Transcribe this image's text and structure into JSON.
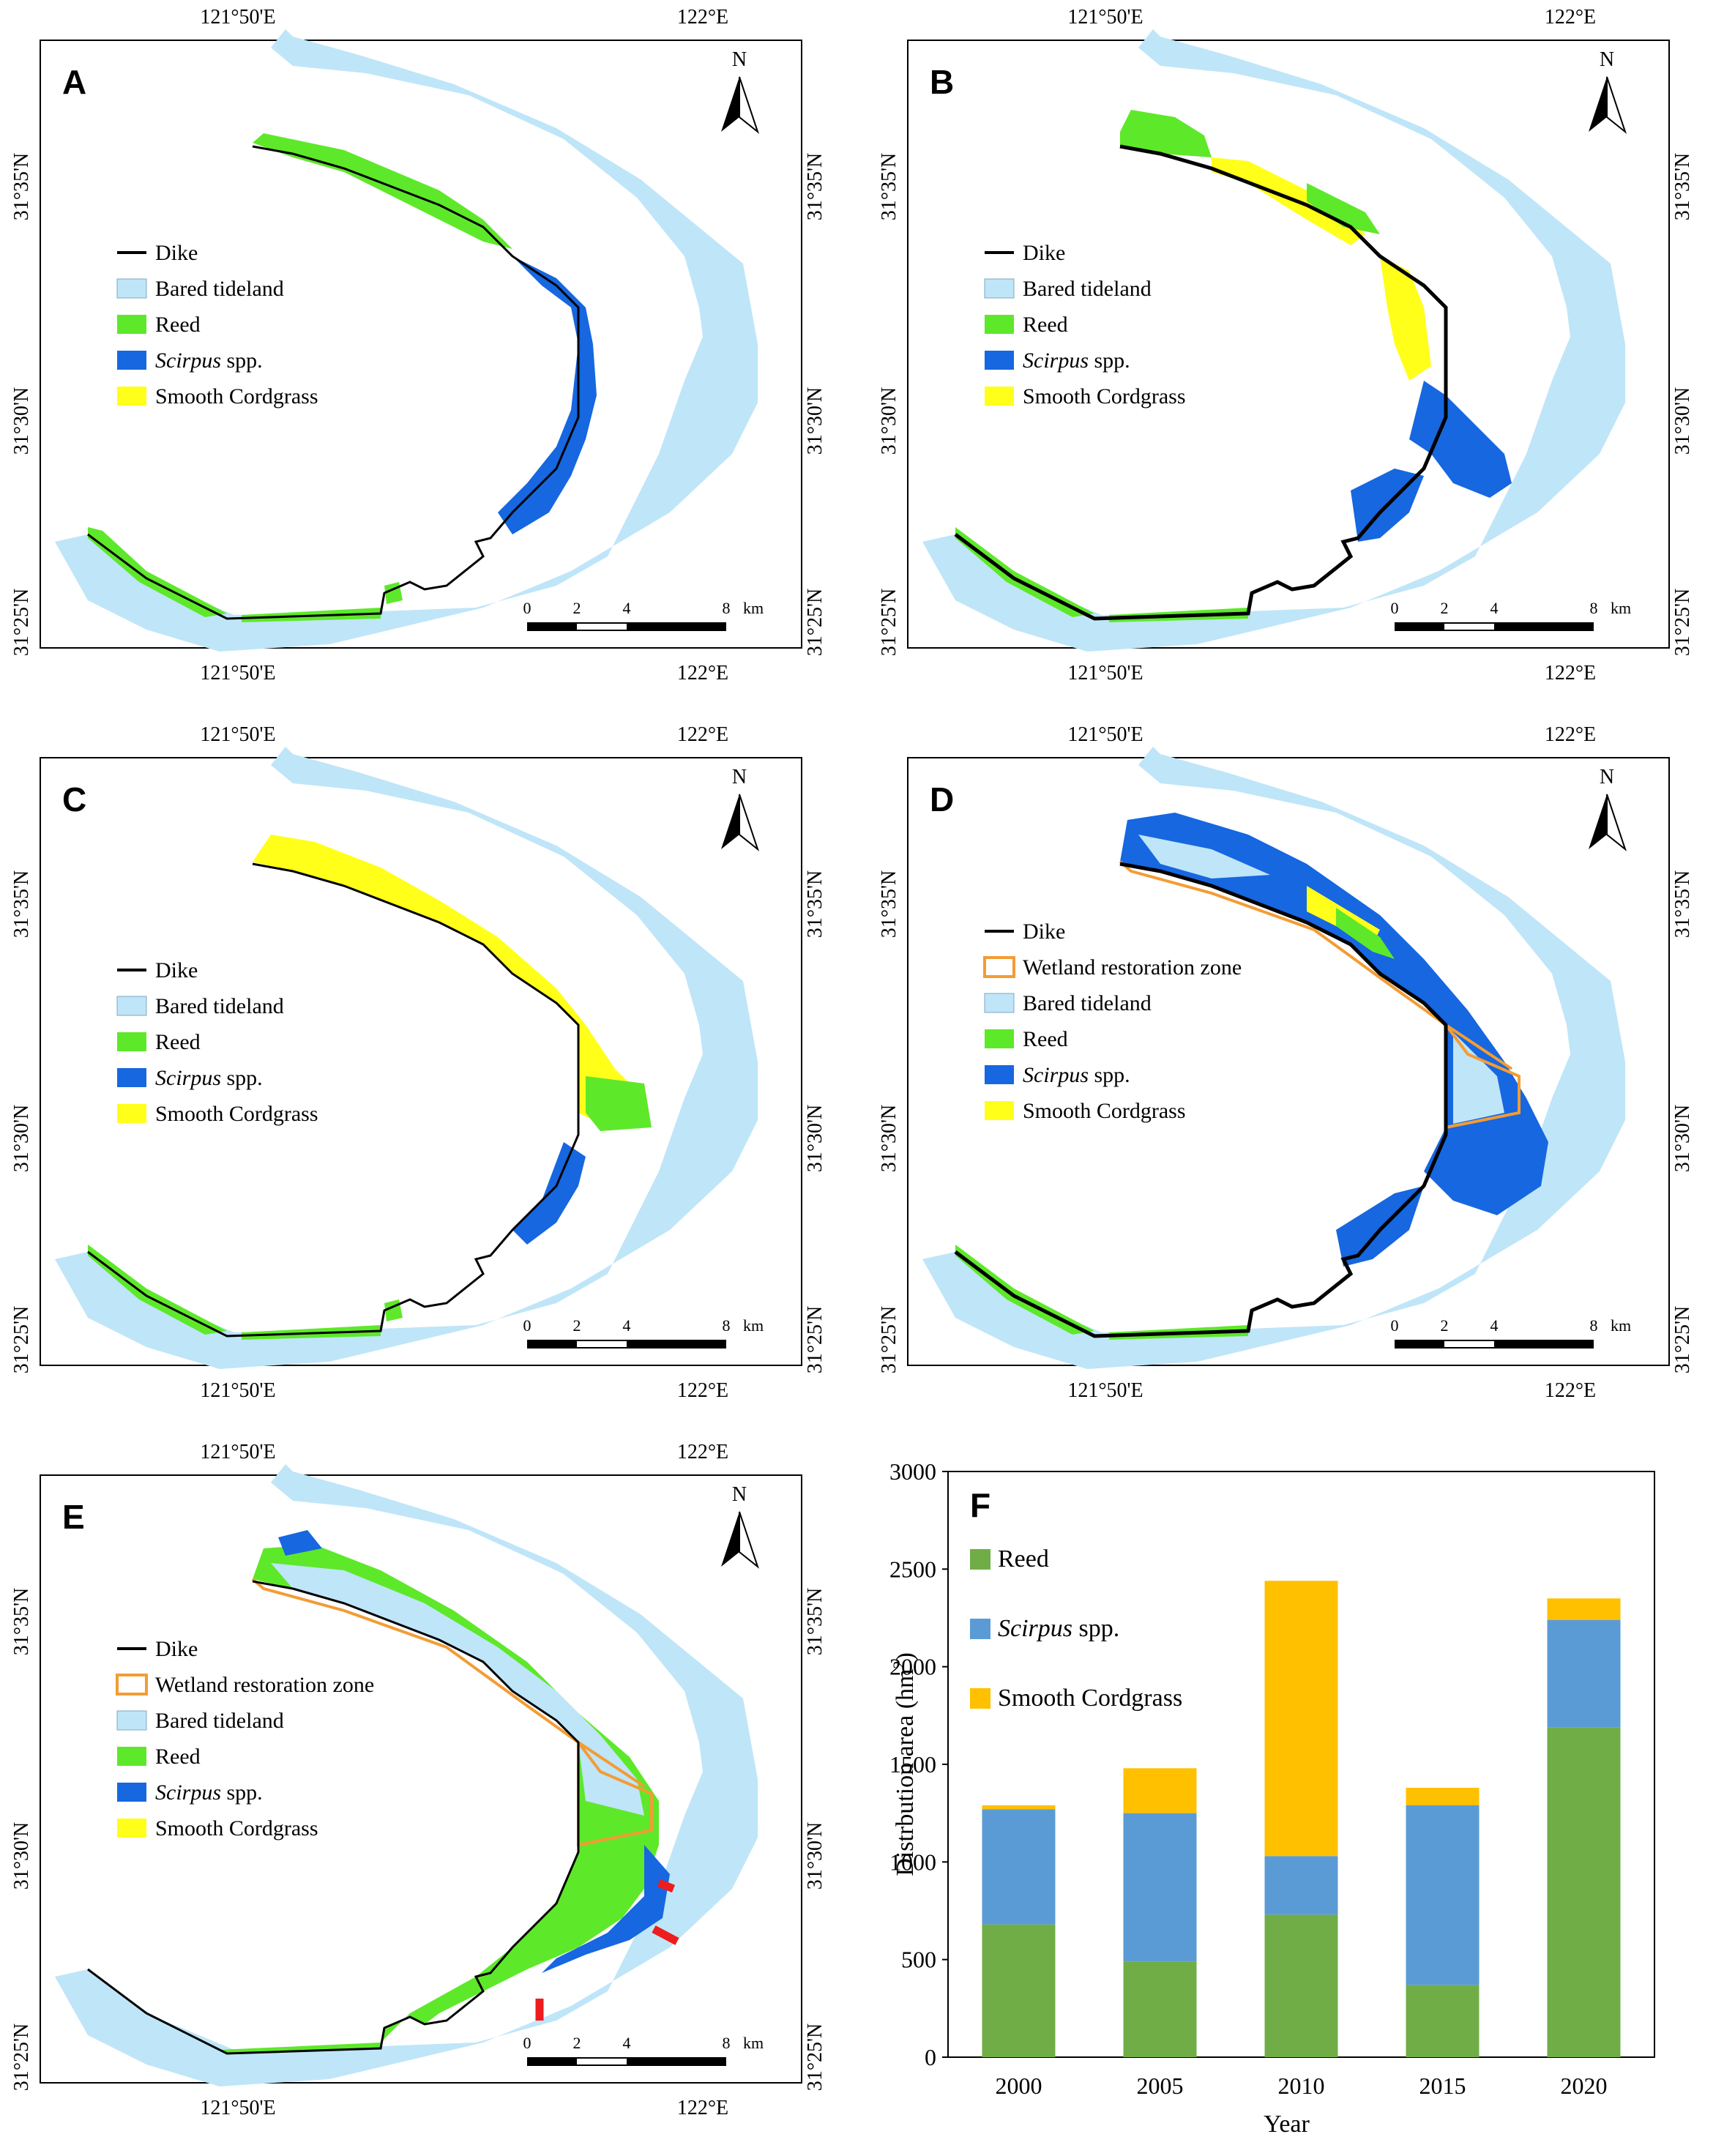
{
  "maps": [
    {
      "id": "A",
      "label": "A",
      "legend": [
        {
          "key": "dike",
          "text": "Dike",
          "italic": ""
        },
        {
          "key": "tideland",
          "text": "Bared tideland",
          "italic": ""
        },
        {
          "key": "reed",
          "text": "Reed",
          "italic": ""
        },
        {
          "key": "scirpus",
          "text": " spp.",
          "italic": "Scirpus"
        },
        {
          "key": "cordgrass",
          "text": "Smooth Cordgrass",
          "italic": ""
        }
      ]
    },
    {
      "id": "B",
      "label": "B",
      "legend": [
        {
          "key": "dike",
          "text": "Dike",
          "italic": ""
        },
        {
          "key": "tideland",
          "text": "Bared tideland",
          "italic": ""
        },
        {
          "key": "reed",
          "text": "Reed",
          "italic": ""
        },
        {
          "key": "scirpus",
          "text": " spp.",
          "italic": "Scirpus"
        },
        {
          "key": "cordgrass",
          "text": "Smooth Cordgrass",
          "italic": ""
        }
      ]
    },
    {
      "id": "C",
      "label": "C",
      "legend": [
        {
          "key": "dike",
          "text": "Dike",
          "italic": ""
        },
        {
          "key": "tideland",
          "text": "Bared tideland",
          "italic": ""
        },
        {
          "key": "reed",
          "text": "Reed",
          "italic": ""
        },
        {
          "key": "scirpus",
          "text": " spp.",
          "italic": "Scirpus"
        },
        {
          "key": "cordgrass",
          "text": "Smooth Cordgrass",
          "italic": ""
        }
      ]
    },
    {
      "id": "D",
      "label": "D",
      "legend": [
        {
          "key": "dike",
          "text": "Dike",
          "italic": ""
        },
        {
          "key": "zone",
          "text": "Wetland restoration zone",
          "italic": ""
        },
        {
          "key": "tideland",
          "text": "Bared tideland",
          "italic": ""
        },
        {
          "key": "reed",
          "text": "Reed",
          "italic": ""
        },
        {
          "key": "scirpus",
          "text": " spp.",
          "italic": "Scirpus"
        },
        {
          "key": "cordgrass",
          "text": "Smooth Cordgrass",
          "italic": ""
        }
      ]
    },
    {
      "id": "E",
      "label": "E",
      "legend": [
        {
          "key": "dike",
          "text": "Dike",
          "italic": ""
        },
        {
          "key": "zone",
          "text": "Wetland restoration zone",
          "italic": ""
        },
        {
          "key": "tideland",
          "text": "Bared tideland",
          "italic": ""
        },
        {
          "key": "reed",
          "text": "Reed",
          "italic": ""
        },
        {
          "key": "scirpus",
          "text": " spp.",
          "italic": "Scirpus"
        },
        {
          "key": "cordgrass",
          "text": "Smooth Cordgrass",
          "italic": ""
        }
      ]
    }
  ],
  "map_text": {
    "lon_ticks": [
      "121°50'E",
      "122°E"
    ],
    "lat_ticks": [
      "31°35'N",
      "31°30'N",
      "31°25'N"
    ],
    "north": "N",
    "scale_ticks": [
      "0",
      "2",
      "4",
      "8"
    ],
    "scale_unit": "km"
  },
  "colors": {
    "tideland": "#bfe5f8",
    "reed": "#5ee82a",
    "scirpus": "#1667e0",
    "cordgrass": "#ffff1a",
    "zone": "#f39c34",
    "dike": "#000000",
    "bar_reed": "#70ad47",
    "bar_scirpus": "#5b9bd5",
    "bar_cordgrass": "#ffc000"
  },
  "chart_data": {
    "label": "F",
    "type": "bar",
    "stacked": true,
    "categories": [
      "2000",
      "2005",
      "2010",
      "2015",
      "2020"
    ],
    "series": [
      {
        "name": "Reed",
        "values": [
          680,
          490,
          730,
          370,
          1690
        ]
      },
      {
        "name": "Scirpus spp.",
        "values": [
          590,
          760,
          300,
          920,
          550
        ]
      },
      {
        "name": "Smooth Cordgrass",
        "values": [
          20,
          230,
          1410,
          90,
          110
        ]
      }
    ],
    "legend_names": [
      {
        "italic": "",
        "text": "Reed"
      },
      {
        "italic": "Scirpus",
        "text": " spp."
      },
      {
        "italic": "",
        "text": "Smooth Cordgrass"
      }
    ],
    "ylabel": "Distrbution area (hm",
    "ylabel_sup": "2",
    "ylabel_end": ")",
    "xlabel": "Year",
    "yticks": [
      "0",
      "500",
      "1000",
      "1500",
      "2000",
      "2500",
      "3000"
    ],
    "ylim": [
      0,
      3000
    ],
    "grid": false,
    "legend_position": "top-left"
  }
}
